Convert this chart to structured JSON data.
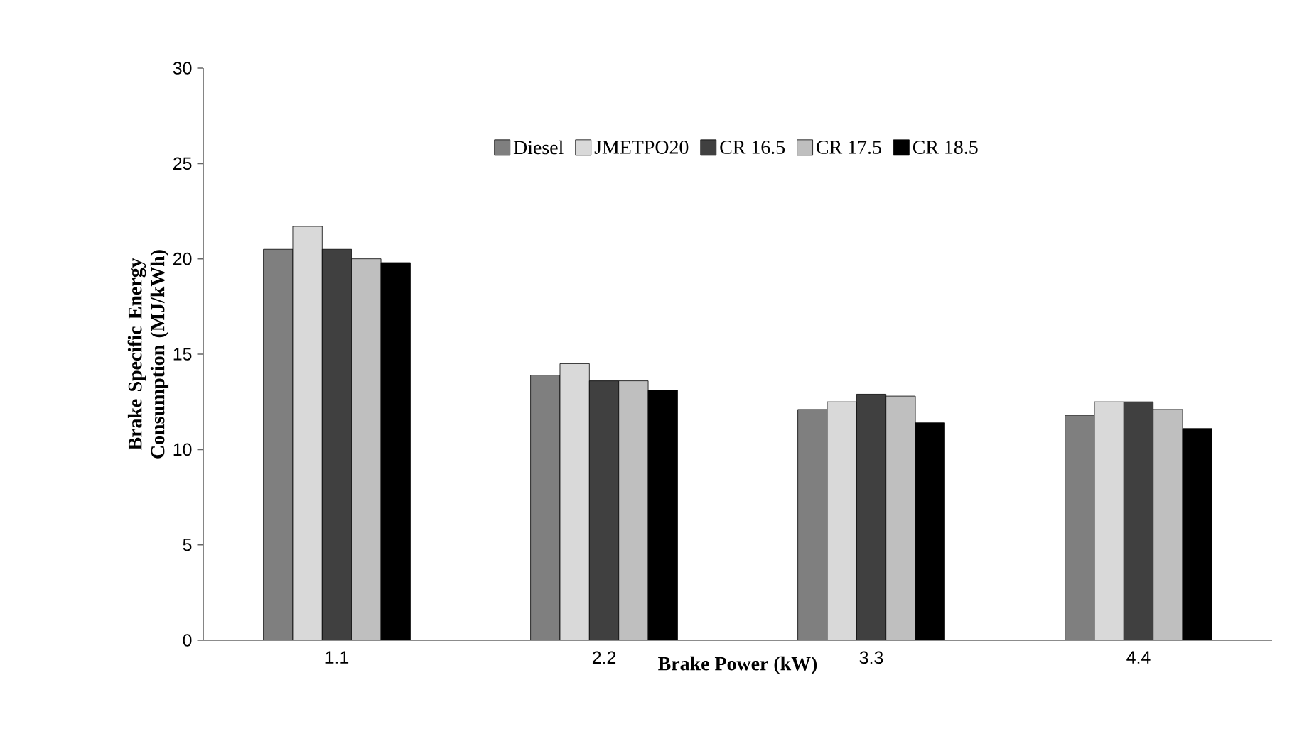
{
  "chart_data": {
    "type": "bar",
    "xlabel": "Brake Power  (kW)",
    "ylabel": "Brake Specific Energy Consumption  (MJ/kWh)",
    "categories": [
      "1.1",
      "2.2",
      "3.3",
      "4.4"
    ],
    "series": [
      {
        "name": "Diesel",
        "color": "#7f7f7f",
        "values": [
          20.5,
          13.9,
          12.1,
          11.8
        ]
      },
      {
        "name": "JMETPO20",
        "color": "#d9d9d9",
        "values": [
          21.7,
          14.5,
          12.5,
          12.5
        ]
      },
      {
        "name": "CR 16.5",
        "color": "#404040",
        "values": [
          20.5,
          13.6,
          12.9,
          12.5
        ]
      },
      {
        "name": "CR 17.5",
        "color": "#bfbfbf",
        "values": [
          20.0,
          13.6,
          12.8,
          12.1
        ]
      },
      {
        "name": "CR 18.5",
        "color": "#000000",
        "values": [
          19.8,
          13.1,
          11.4,
          11.1
        ]
      }
    ],
    "ylim": [
      0,
      30
    ],
    "yticks": [
      0,
      5,
      10,
      15,
      20,
      25,
      30
    ],
    "legend": "top"
  }
}
